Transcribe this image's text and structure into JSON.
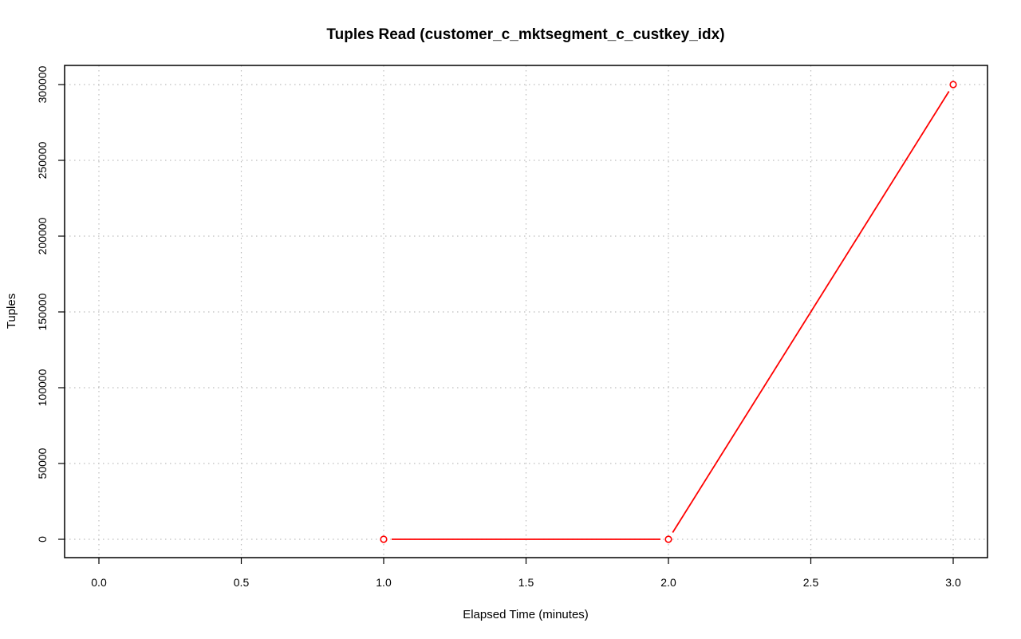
{
  "chart_data": {
    "type": "line",
    "title": "Tuples Read (customer_c_mktsegment_c_custkey_idx)",
    "xlabel": "Elapsed Time (minutes)",
    "ylabel": "Tuples",
    "xlim": [
      0.0,
      3.0
    ],
    "ylim": [
      0,
      300000
    ],
    "x_ticks": [
      0.0,
      0.5,
      1.0,
      1.5,
      2.0,
      2.5,
      3.0
    ],
    "x_tick_labels": [
      "0.0",
      "0.5",
      "1.0",
      "1.5",
      "2.0",
      "2.5",
      "3.0"
    ],
    "y_ticks": [
      0,
      50000,
      100000,
      150000,
      200000,
      250000,
      300000
    ],
    "y_tick_labels": [
      "0",
      "50000",
      "100000",
      "150000",
      "200000",
      "250000",
      "300000"
    ],
    "grid": true,
    "series": [
      {
        "color": "#ff0000",
        "x": [
          1.0,
          2.0,
          3.0
        ],
        "y": [
          0,
          0,
          300000
        ]
      }
    ]
  }
}
